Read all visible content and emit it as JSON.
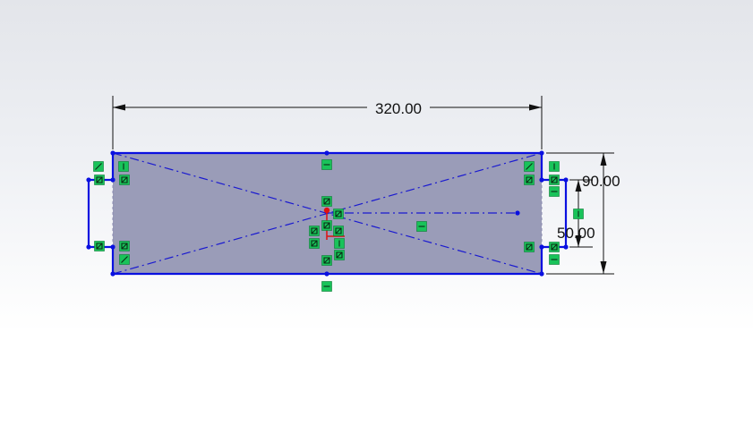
{
  "viewport": {
    "background": "gradient-light-gray-to-white"
  },
  "sketch": {
    "region_fill": "#9a9cb8",
    "line_color": "#0a10e0",
    "construction_color": "#1a1ad0",
    "relation_badge_color": "#19c35a",
    "origin_color": "#e01010"
  },
  "dimensions": {
    "overall_length": "320.00",
    "overall_height": "90.00",
    "slot_height": "50.00"
  },
  "relation_icons": [
    "horizontal-relation-icon",
    "vertical-relation-icon",
    "coincident-relation-icon",
    "parallel-relation-icon",
    "midpoint-relation-icon"
  ]
}
